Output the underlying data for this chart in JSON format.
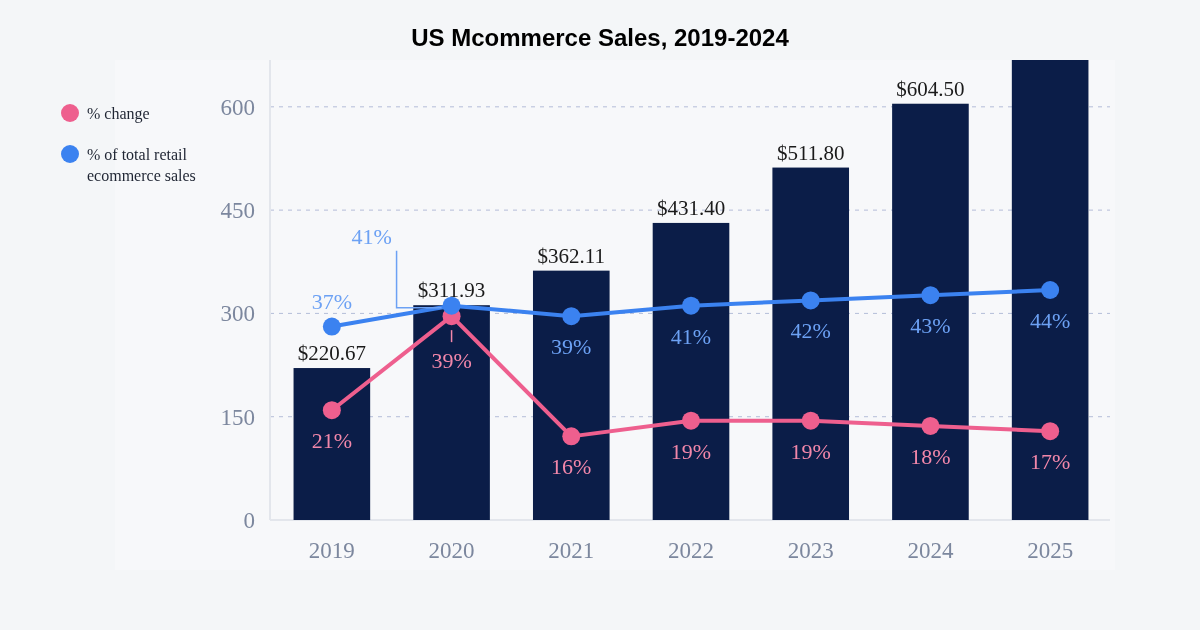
{
  "chart_data": {
    "type": "bar",
    "title": "US Mcommerce Sales, 2019-2024",
    "categories": [
      "2019",
      "2020",
      "2021",
      "2022",
      "2023",
      "2024",
      "2025"
    ],
    "series": [
      {
        "color": "#0b1d48",
        "values": [
          220.67,
          311.93,
          362.11,
          431.4,
          511.8,
          604.5,
          668
        ],
        "value_labels": [
          "$220.67",
          "$311.93",
          "$362.11",
          "$431.40",
          "$511.80",
          "$604.50",
          null
        ]
      },
      {
        "type": "line",
        "axis": "y2",
        "name": "% change",
        "color": "#ee5f8e",
        "values": [
          21,
          39,
          16,
          19,
          19,
          18,
          17
        ],
        "value_labels": [
          "21%",
          "39%",
          "16%",
          "19%",
          "19%",
          "18%",
          "17%"
        ]
      },
      {
        "type": "line",
        "axis": "y2",
        "name": "% of total retail ecommerce sales",
        "color": "#3b82f0",
        "values": [
          37,
          41,
          39,
          41,
          42,
          43,
          44
        ],
        "value_labels": [
          "37%",
          "41%",
          "39%",
          "41%",
          "42%",
          "43%",
          "44%"
        ]
      }
    ],
    "ylim": [
      0,
      668
    ],
    "yticks": [
      0,
      150,
      300,
      450,
      600
    ],
    "y2lim": [
      0,
      88
    ],
    "tick_labels": "xy",
    "grid": "y",
    "legend": "top left",
    "marker": "circle",
    "line_style": "solid"
  }
}
